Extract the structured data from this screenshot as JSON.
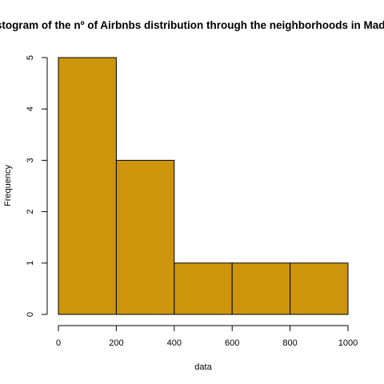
{
  "chart_data": {
    "type": "bar",
    "title": "Histogram of the nº of Airbnbs distribution through the neighborhoods in Madrid",
    "xlabel": "data",
    "ylabel": "Frequency",
    "bins": [
      {
        "from": 0,
        "to": 200,
        "value": 5
      },
      {
        "from": 200,
        "to": 400,
        "value": 3
      },
      {
        "from": 400,
        "to": 600,
        "value": 1
      },
      {
        "from": 600,
        "to": 800,
        "value": 1
      },
      {
        "from": 800,
        "to": 1000,
        "value": 1
      }
    ],
    "xlim": [
      0,
      1000
    ],
    "ylim": [
      0,
      5
    ],
    "xticks": [
      "0",
      "200",
      "400",
      "600",
      "800",
      "1000"
    ],
    "yticks": [
      "0",
      "1",
      "2",
      "3",
      "4",
      "5"
    ],
    "grid": false,
    "bar_color": "#CD950C",
    "edge_color": "#000000"
  }
}
